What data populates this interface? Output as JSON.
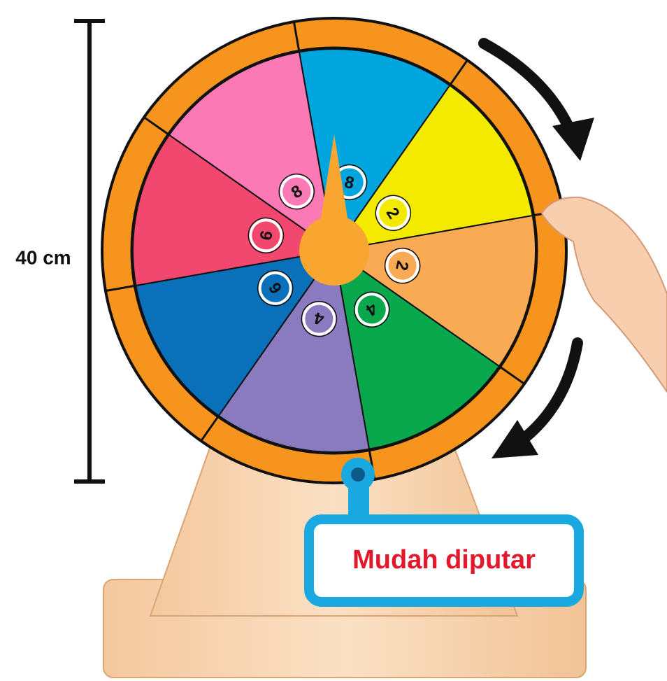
{
  "dimension_label": "40 cm",
  "callout": "Mudah diputar",
  "wheel": {
    "segments": [
      {
        "label": "8",
        "color": "#02a6df"
      },
      {
        "label": "2",
        "color": "#f3ea00"
      },
      {
        "label": "2",
        "color": "#f9aa55"
      },
      {
        "label": "4",
        "color": "#09a84c"
      },
      {
        "label": "4",
        "color": "#8a7bc0"
      },
      {
        "label": "6",
        "color": "#0a70b9"
      },
      {
        "label": "6",
        "color": "#f2476f"
      },
      {
        "label": "8",
        "color": "#fb79b5"
      }
    ]
  }
}
